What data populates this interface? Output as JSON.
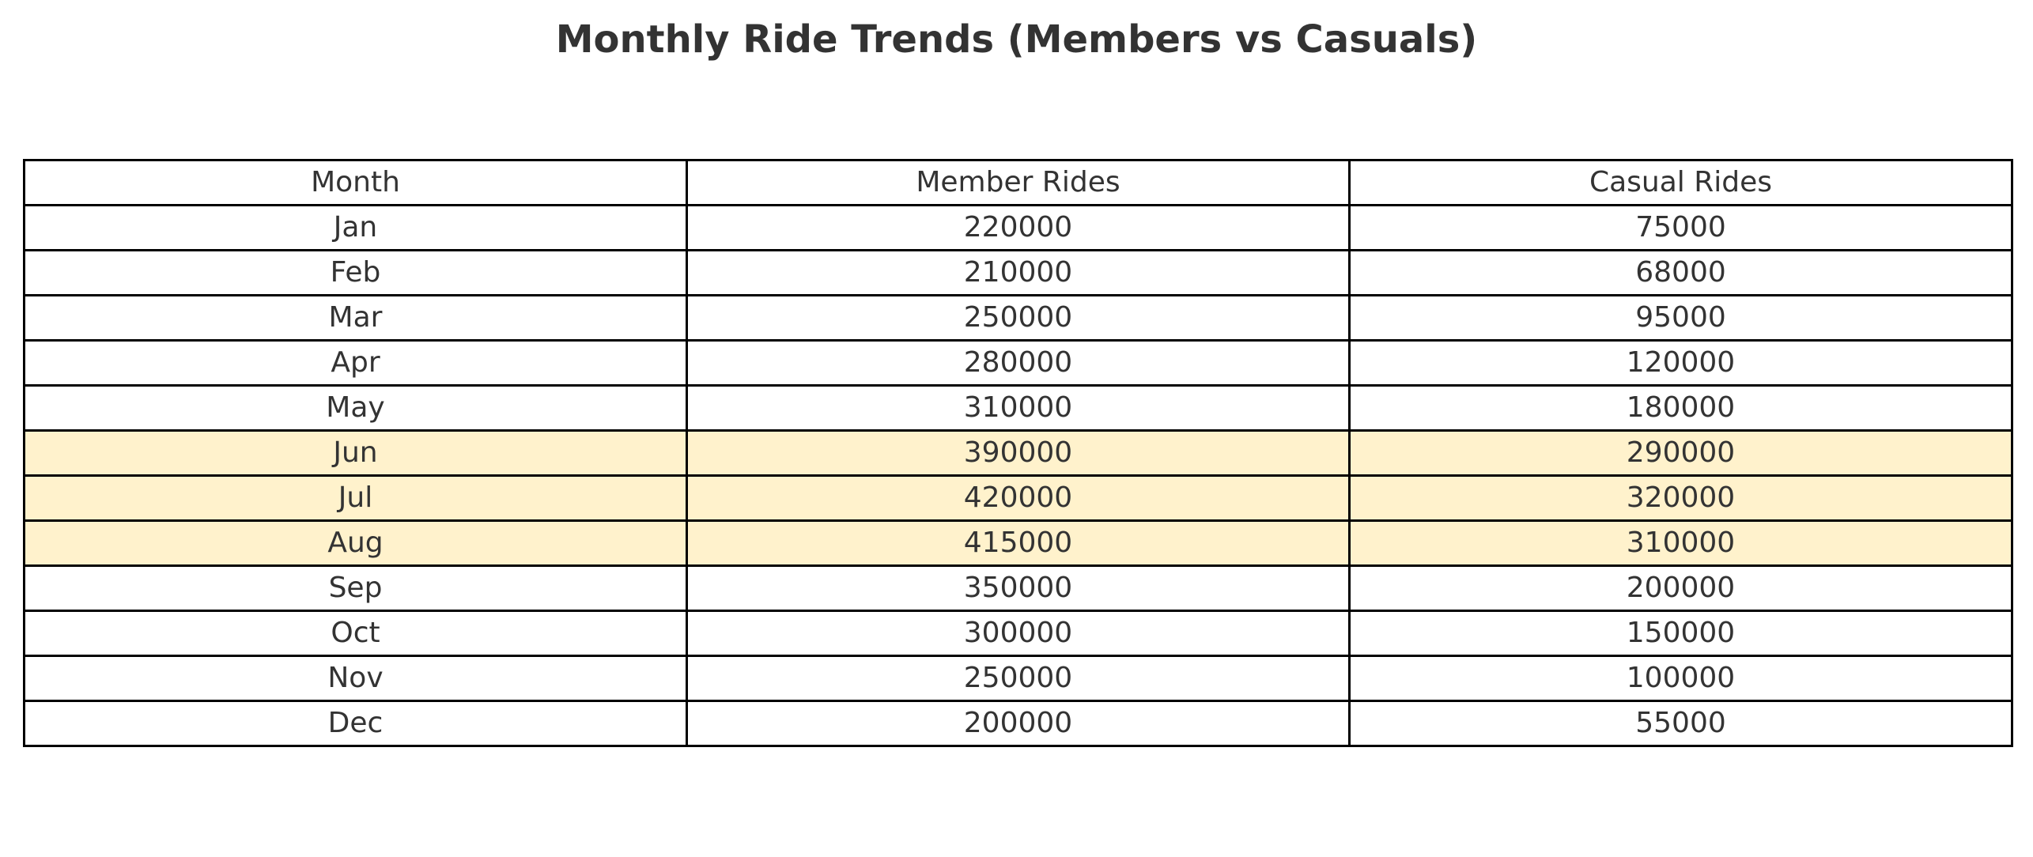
{
  "chart_data": {
    "type": "table",
    "title": "Monthly Ride Trends (Members vs Casuals)",
    "columns": [
      "Month",
      "Member Rides",
      "Casual Rides"
    ],
    "rows": [
      [
        "Jan",
        "220000",
        "75000"
      ],
      [
        "Feb",
        "210000",
        "68000"
      ],
      [
        "Mar",
        "250000",
        "95000"
      ],
      [
        "Apr",
        "280000",
        "120000"
      ],
      [
        "May",
        "310000",
        "180000"
      ],
      [
        "Jun",
        "390000",
        "290000"
      ],
      [
        "Jul",
        "420000",
        "320000"
      ],
      [
        "Aug",
        "415000",
        "310000"
      ],
      [
        "Sep",
        "350000",
        "200000"
      ],
      [
        "Oct",
        "300000",
        "150000"
      ],
      [
        "Nov",
        "250000",
        "100000"
      ],
      [
        "Dec",
        "200000",
        "55000"
      ]
    ],
    "highlighted_months": [
      "Jun",
      "Jul",
      "Aug"
    ],
    "highlight_color": "#fff2cc",
    "border_color": "#000000",
    "text_color": "#333333"
  }
}
